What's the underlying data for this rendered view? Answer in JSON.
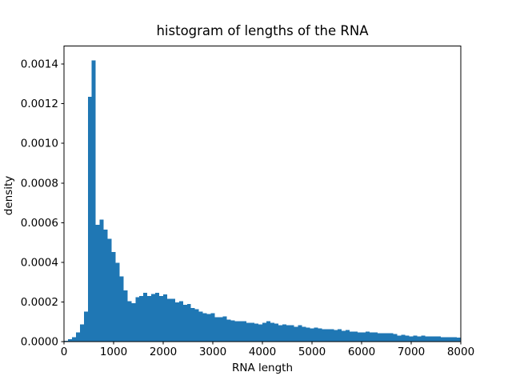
{
  "figure": {
    "title": "histogram of lengths of the RNA",
    "xlabel": "RNA length",
    "ylabel": "density",
    "background_color": "#ffffff",
    "spine_color": "#000000",
    "text_color": "#000000"
  },
  "chart_data": {
    "type": "bar",
    "subtype": "histogram",
    "title": "histogram of lengths of the RNA",
    "xlabel": "RNA length",
    "ylabel": "density",
    "bar_color": "#1f77b4",
    "grid": false,
    "legend": null,
    "xlim": [
      0,
      8000
    ],
    "ylim": [
      0,
      0.00149
    ],
    "x_ticks": [
      0,
      1000,
      2000,
      3000,
      4000,
      5000,
      6000,
      7000,
      8000
    ],
    "x_tick_labels": [
      "0",
      "1000",
      "2000",
      "3000",
      "4000",
      "5000",
      "6000",
      "7000",
      "8000"
    ],
    "y_ticks": [
      0.0,
      0.0002,
      0.0004,
      0.0006,
      0.0008,
      0.001,
      0.0012,
      0.0014
    ],
    "y_tick_labels": [
      "0.0000",
      "0.0002",
      "0.0004",
      "0.0006",
      "0.0008",
      "0.0010",
      "0.0012",
      "0.0014"
    ],
    "bin_start": 0,
    "bin_width": 80,
    "values": [
      4e-06,
      1.2e-05,
      2.4e-05,
      4.8e-05,
      8.8e-05,
      0.000152,
      0.001235,
      0.001419,
      0.00059,
      0.000615,
      0.000565,
      0.00052,
      0.000452,
      0.000399,
      0.000329,
      0.000258,
      0.000205,
      0.000194,
      0.000225,
      0.00023,
      0.000246,
      0.00023,
      0.00024,
      0.000246,
      0.00023,
      0.000238,
      0.000217,
      0.000217,
      0.000198,
      0.000205,
      0.000186,
      0.00019,
      0.00017,
      0.000164,
      0.000152,
      0.000144,
      0.00014,
      0.000144,
      0.000124,
      0.000124,
      0.000128,
      0.000112,
      0.000108,
      0.000104,
      0.000104,
      0.000104,
      9.6e-05,
      9.6e-05,
      9.2e-05,
      8.8e-05,
      9.6e-05,
      0.000104,
      9.6e-05,
      9.2e-05,
      8.4e-05,
      8.8e-05,
      8.4e-05,
      8.4e-05,
      7.6e-05,
      8.4e-05,
      7.6e-05,
      7.2e-05,
      6.8e-05,
      7.2e-05,
      6.8e-05,
      6.4e-05,
      6.4e-05,
      6.4e-05,
      6e-05,
      6.4e-05,
      5.6e-05,
      6e-05,
      5.2e-05,
      5.2e-05,
      4.8e-05,
      4.8e-05,
      5.2e-05,
      4.8e-05,
      4.8e-05,
      4.4e-05,
      4.4e-05,
      4.4e-05,
      4.4e-05,
      4e-05,
      3.2e-05,
      3.6e-05,
      3.2e-05,
      2.8e-05,
      3.2e-05,
      2.8e-05,
      3.2e-05,
      2.8e-05,
      2.8e-05,
      2.8e-05,
      2.8e-05,
      2.4e-05,
      2.4e-05,
      2.4e-05,
      2.4e-05,
      2e-05
    ]
  }
}
